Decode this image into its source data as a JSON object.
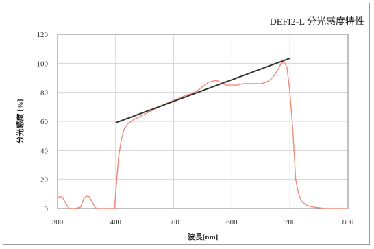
{
  "chart_data": {
    "type": "line",
    "title": "DEFI2-L 分光感度特性",
    "xlabel": "波長[nm]",
    "ylabel": "分光感度 [%]",
    "xlim": [
      300,
      800
    ],
    "ylim": [
      0,
      120
    ],
    "x_ticks": [
      300,
      400,
      500,
      600,
      700,
      800
    ],
    "y_ticks": [
      0,
      20,
      40,
      60,
      80,
      100,
      120
    ],
    "grid": true,
    "legend": "none",
    "series": [
      {
        "color": "#f08a7a",
        "x": [
          300,
          308,
          312,
          320,
          330,
          340,
          345,
          350,
          355,
          360,
          365,
          370,
          380,
          390,
          398,
          402,
          405,
          410,
          415,
          420,
          430,
          440,
          450,
          460,
          470,
          480,
          490,
          500,
          510,
          520,
          530,
          540,
          550,
          560,
          570,
          575,
          580,
          590,
          600,
          610,
          620,
          630,
          640,
          650,
          660,
          670,
          680,
          685,
          690,
          695,
          700,
          705,
          710,
          715,
          720,
          730,
          740,
          750,
          760,
          770,
          780,
          790,
          800
        ],
        "y": [
          8,
          8,
          5,
          0,
          0,
          1,
          7,
          8.5,
          8,
          4,
          0.5,
          0,
          0,
          0,
          0,
          20,
          35,
          48,
          55,
          58,
          61,
          63,
          65,
          67,
          69,
          71,
          73,
          74.5,
          76,
          78,
          79,
          81,
          84,
          87,
          88,
          88,
          87,
          85,
          85,
          85,
          86,
          86,
          86,
          86,
          87,
          90,
          96,
          100,
          101,
          97,
          80,
          55,
          20,
          10,
          5,
          2,
          1,
          0.5,
          0,
          0,
          0,
          0,
          0
        ]
      },
      {
        "color": "#333333",
        "x": [
          400,
          700
        ],
        "y": [
          59,
          103.5
        ]
      }
    ]
  }
}
